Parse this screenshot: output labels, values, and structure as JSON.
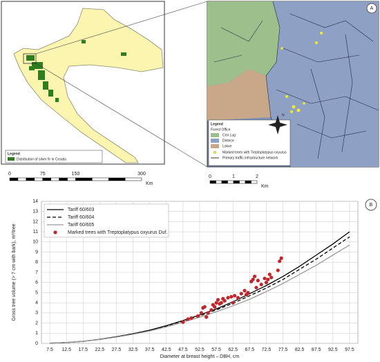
{
  "maps": {
    "overview": {
      "legend_title": "Legend",
      "legend_item": "Distribution of silver fir in Croatia",
      "scale": [
        0,
        75,
        150,
        300
      ],
      "scale_unit": "Km"
    },
    "detail": {
      "label": "A",
      "legend_title": "Legend",
      "legend_subtitle": "Forest Office",
      "offices": [
        "Crni Lug",
        "Delnice",
        "Lokve"
      ],
      "marked_trees": "Marked trees with Treptoplatypus oxyurus",
      "roads": "Primary traffic infrastructure network",
      "north": "N",
      "scale": [
        0,
        1,
        2
      ],
      "scale_unit": "Km"
    }
  },
  "chart_data": {
    "type": "line",
    "label": "B",
    "x_label": "Diameter at breast height – DBH, cm",
    "y_label": "Gross tree volume (> 7 cm with bark), m³/tree",
    "x": [
      7.5,
      12.5,
      17.5,
      22.5,
      27.5,
      32.5,
      37.5,
      42.5,
      47.5,
      52.5,
      57.5,
      62.5,
      67.5,
      72.5,
      77.5,
      82.5,
      87.5,
      92.5,
      97.5
    ],
    "series": [
      {
        "name": "Tariff 60/603",
        "color": "#000000",
        "dash": "solid",
        "values": [
          0.02,
          0.08,
          0.2,
          0.4,
          0.65,
          0.95,
          1.3,
          1.75,
          2.25,
          2.8,
          3.4,
          4.1,
          4.9,
          5.7,
          6.6,
          7.6,
          8.7,
          9.8,
          11.0
        ]
      },
      {
        "name": "Tariff 60/604",
        "color": "#000000",
        "dash": "dashed",
        "values": [
          0.02,
          0.08,
          0.2,
          0.4,
          0.65,
          0.95,
          1.3,
          1.72,
          2.2,
          2.72,
          3.3,
          3.95,
          4.7,
          5.45,
          6.3,
          7.3,
          8.3,
          9.4,
          10.5
        ]
      },
      {
        "name": "Tariff 60/605",
        "color": "#999999",
        "dash": "solid",
        "values": [
          0.02,
          0.08,
          0.2,
          0.38,
          0.62,
          0.9,
          1.22,
          1.62,
          2.08,
          2.58,
          3.12,
          3.7,
          4.35,
          5.1,
          5.9,
          6.8,
          7.7,
          8.7,
          9.7
        ]
      },
      {
        "name": "Marked trees with Treptoplatypus oxyurus Duf.",
        "color": "#c0272d",
        "marker": "circle",
        "x": [
          47.5,
          49,
          50,
          52,
          53,
          53.5,
          54,
          54.5,
          55,
          56,
          56.5,
          57,
          57.5,
          58,
          58.5,
          59,
          59.5,
          60,
          61,
          62,
          62.5,
          63,
          64,
          65,
          66,
          66.5,
          67,
          68,
          68.5,
          69,
          69.5,
          70,
          71,
          72,
          72.5,
          73,
          73.5,
          74,
          76,
          76.5,
          77
        ],
        "values": [
          2.1,
          2.4,
          2.5,
          2.7,
          3.0,
          3.5,
          3.6,
          2.6,
          3.0,
          3.3,
          3.8,
          3.6,
          4.0,
          4.3,
          3.9,
          4.0,
          4.4,
          4.2,
          4.5,
          4.6,
          4.0,
          4.7,
          4.5,
          4.9,
          5.2,
          4.8,
          5.0,
          6.1,
          6.3,
          6.6,
          5.5,
          6.2,
          5.8,
          6.4,
          6.0,
          6.3,
          6.8,
          6.5,
          7.2,
          8.1,
          8.4
        ]
      }
    ],
    "xlim": [
      5,
      100
    ],
    "xticks": [
      7.5,
      12.5,
      17.5,
      22.5,
      27.5,
      32.5,
      37.5,
      42.5,
      47.5,
      52.5,
      57.5,
      62.5,
      67.5,
      72.5,
      77.5,
      82.5,
      87.5,
      92.5,
      97.5
    ],
    "ylim": [
      0,
      14
    ],
    "yticks": [
      0,
      1,
      2,
      3,
      4,
      5,
      6,
      7,
      8,
      9,
      10,
      11,
      12,
      13,
      14
    ],
    "grid": true,
    "legend": "upper left"
  }
}
